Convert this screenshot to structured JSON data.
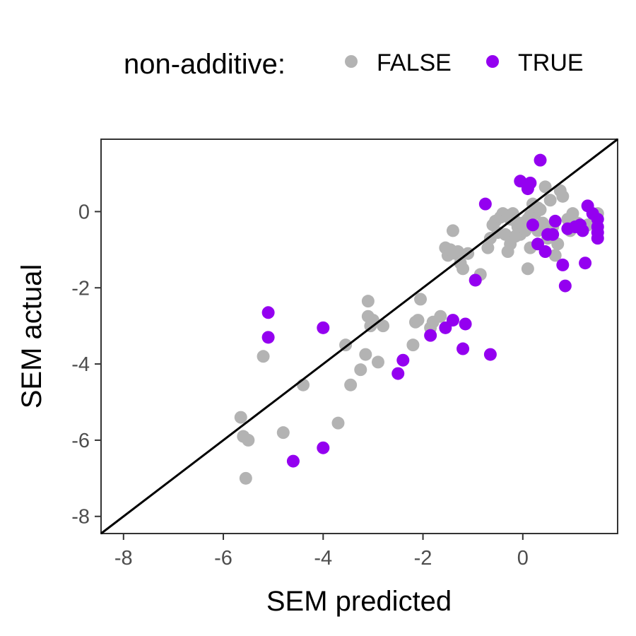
{
  "chart_data": {
    "type": "scatter",
    "xlabel": "SEM predicted",
    "ylabel": "SEM actual",
    "xlim": [
      -8.45,
      1.9
    ],
    "ylim": [
      -8.45,
      1.9
    ],
    "x_ticks": [
      -8,
      -6,
      -4,
      -2,
      0
    ],
    "y_ticks": [
      -8,
      -6,
      -4,
      -2,
      0
    ],
    "x_tick_labels": [
      "-8",
      "-6",
      "-4",
      "-2",
      "0"
    ],
    "y_tick_labels": [
      "-8",
      "-6",
      "-4",
      "-2",
      "0"
    ],
    "reference_line": {
      "slope": 1,
      "intercept": 0,
      "color": "#000000"
    },
    "legend": {
      "title": "non-additive:",
      "position": "top"
    },
    "grid": false,
    "series": [
      {
        "name": "FALSE",
        "color": "#b3b3b3",
        "points": [
          [
            -5.65,
            -5.4
          ],
          [
            -5.6,
            -5.9
          ],
          [
            -5.5,
            -6.0
          ],
          [
            -5.55,
            -7.0
          ],
          [
            -5.2,
            -3.8
          ],
          [
            -4.8,
            -5.8
          ],
          [
            -4.4,
            -4.55
          ],
          [
            -3.7,
            -5.55
          ],
          [
            -3.55,
            -3.5
          ],
          [
            -3.45,
            -4.55
          ],
          [
            -3.25,
            -4.15
          ],
          [
            -3.15,
            -3.75
          ],
          [
            -3.1,
            -2.35
          ],
          [
            -3.1,
            -2.75
          ],
          [
            -3.05,
            -3.0
          ],
          [
            -3.0,
            -2.85
          ],
          [
            -2.9,
            -3.95
          ],
          [
            -2.8,
            -3.0
          ],
          [
            -2.2,
            -3.5
          ],
          [
            -2.15,
            -2.9
          ],
          [
            -2.1,
            -2.85
          ],
          [
            -2.05,
            -2.3
          ],
          [
            -1.85,
            -3.05
          ],
          [
            -1.8,
            -2.9
          ],
          [
            -1.65,
            -2.75
          ],
          [
            -1.55,
            -0.95
          ],
          [
            -1.5,
            -1.15
          ],
          [
            -1.45,
            -1.0
          ],
          [
            -1.4,
            -0.5
          ],
          [
            -1.35,
            -1.1
          ],
          [
            -1.3,
            -1.05
          ],
          [
            -1.25,
            -1.35
          ],
          [
            -1.2,
            -1.5
          ],
          [
            -1.1,
            -1.1
          ],
          [
            -0.95,
            -1.8
          ],
          [
            -0.85,
            -1.65
          ],
          [
            -0.7,
            -0.95
          ],
          [
            -0.65,
            -0.7
          ],
          [
            -0.6,
            -0.35
          ],
          [
            -0.55,
            -0.25
          ],
          [
            -0.5,
            -0.55
          ],
          [
            -0.45,
            -0.15
          ],
          [
            -0.4,
            -0.05
          ],
          [
            -0.35,
            -0.6
          ],
          [
            -0.3,
            -0.1
          ],
          [
            -0.25,
            -0.2
          ],
          [
            -0.2,
            -0.05
          ],
          [
            -0.15,
            -0.25
          ],
          [
            -0.1,
            -0.4
          ],
          [
            -0.05,
            -0.6
          ],
          [
            0.0,
            -0.3
          ],
          [
            0.05,
            -0.5
          ],
          [
            0.1,
            -0.2
          ],
          [
            0.15,
            -0.1
          ],
          [
            0.2,
            0.2
          ],
          [
            0.25,
            -0.05
          ],
          [
            0.3,
            0.1
          ],
          [
            0.35,
            0.05
          ],
          [
            0.4,
            -0.3
          ],
          [
            0.45,
            0.65
          ],
          [
            0.5,
            -0.7
          ],
          [
            0.55,
            0.3
          ],
          [
            0.6,
            -0.4
          ],
          [
            0.65,
            -1.15
          ],
          [
            0.7,
            -0.85
          ],
          [
            0.75,
            0.55
          ],
          [
            0.8,
            0.4
          ],
          [
            0.9,
            -0.2
          ],
          [
            0.95,
            -0.5
          ],
          [
            1.0,
            -0.05
          ],
          [
            1.1,
            -0.3
          ],
          [
            1.3,
            -0.35
          ],
          [
            1.45,
            -0.25
          ],
          [
            1.5,
            -0.05
          ],
          [
            -0.25,
            -0.85
          ],
          [
            -0.15,
            -0.65
          ],
          [
            0.1,
            -1.5
          ],
          [
            0.15,
            -0.95
          ],
          [
            0.3,
            -0.5
          ],
          [
            -0.3,
            -1.05
          ]
        ]
      },
      {
        "name": "TRUE",
        "color": "#9400f0",
        "points": [
          [
            -5.1,
            -2.65
          ],
          [
            -5.1,
            -3.3
          ],
          [
            -4.6,
            -6.55
          ],
          [
            -4.0,
            -6.2
          ],
          [
            -4.0,
            -3.05
          ],
          [
            -2.5,
            -4.25
          ],
          [
            -2.4,
            -3.9
          ],
          [
            -1.85,
            -3.25
          ],
          [
            -1.55,
            -3.05
          ],
          [
            -1.4,
            -2.85
          ],
          [
            -1.2,
            -3.6
          ],
          [
            -1.15,
            -2.95
          ],
          [
            -0.95,
            -1.8
          ],
          [
            -0.75,
            0.2
          ],
          [
            -0.65,
            -3.75
          ],
          [
            -0.05,
            0.8
          ],
          [
            0.1,
            0.6
          ],
          [
            0.15,
            0.75
          ],
          [
            0.2,
            -0.35
          ],
          [
            0.3,
            -0.85
          ],
          [
            0.35,
            1.35
          ],
          [
            0.45,
            -1.05
          ],
          [
            0.5,
            -0.6
          ],
          [
            0.6,
            -0.6
          ],
          [
            0.65,
            -0.25
          ],
          [
            0.8,
            -1.4
          ],
          [
            0.85,
            -1.95
          ],
          [
            0.9,
            -0.45
          ],
          [
            1.05,
            -0.4
          ],
          [
            1.15,
            -0.35
          ],
          [
            1.2,
            -0.5
          ],
          [
            1.25,
            -1.35
          ],
          [
            1.3,
            0.15
          ],
          [
            1.4,
            -0.05
          ],
          [
            1.5,
            -0.2
          ],
          [
            1.5,
            -0.4
          ],
          [
            1.5,
            -0.55
          ],
          [
            1.5,
            -0.7
          ]
        ]
      }
    ]
  }
}
